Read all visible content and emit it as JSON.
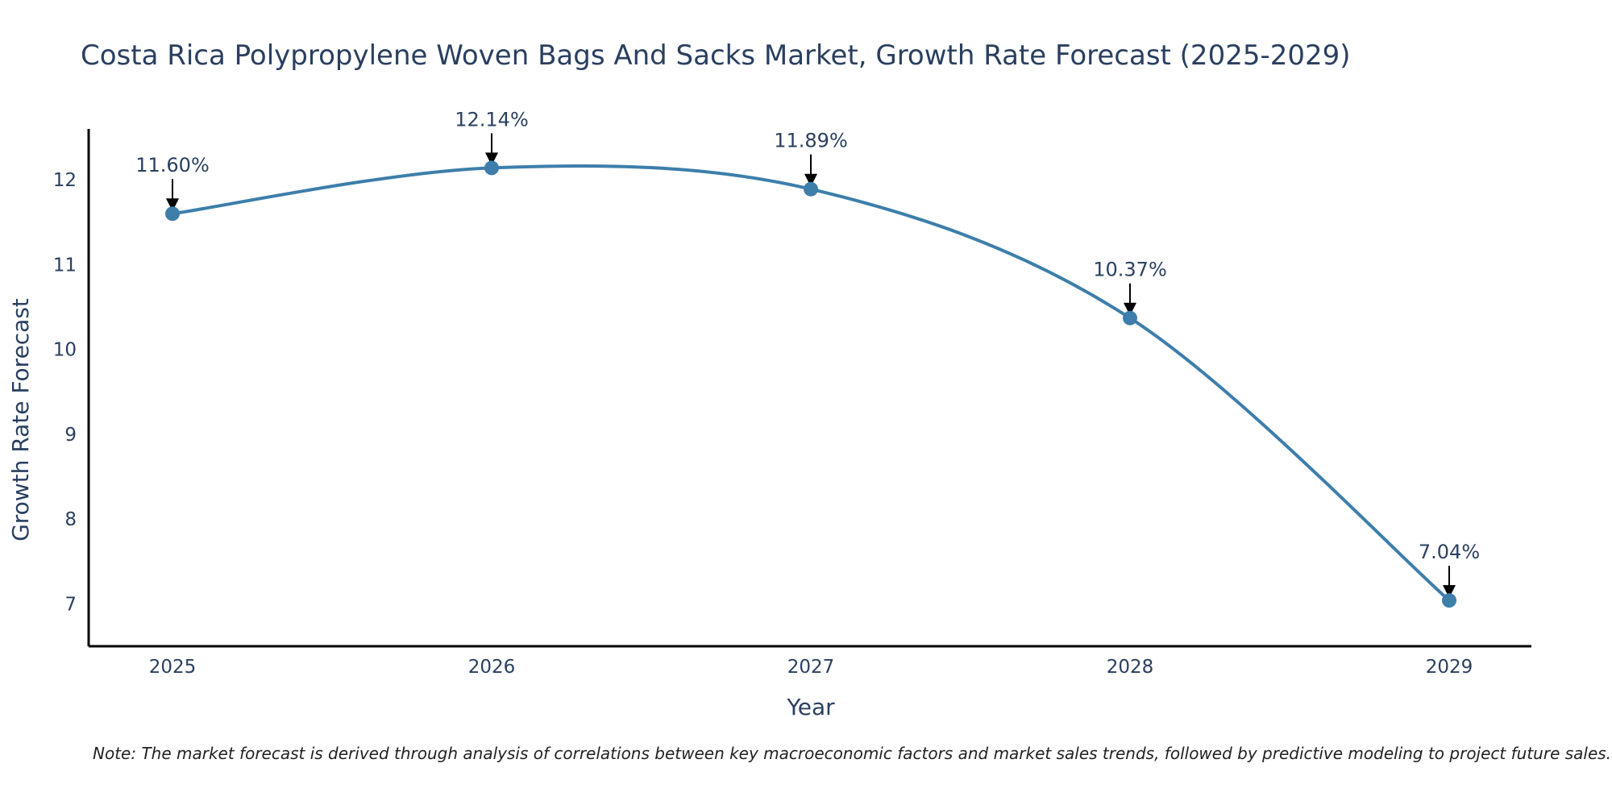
{
  "chart_data": {
    "type": "line",
    "title": "Costa Rica Polypropylene Woven Bags And Sacks Market, Growth Rate Forecast (2025-2029)",
    "xlabel": "Year",
    "ylabel": "Growth Rate Forecast",
    "categories": [
      "2025",
      "2026",
      "2027",
      "2028",
      "2029"
    ],
    "series": [
      {
        "name": "Growth Rate Forecast",
        "values": [
          11.6,
          12.14,
          11.89,
          10.37,
          7.04
        ],
        "labels": [
          "11.60%",
          "12.14%",
          "11.89%",
          "10.37%",
          "7.04%"
        ],
        "color": "#3d7eab"
      }
    ],
    "yticks": [
      7,
      8,
      9,
      10,
      11,
      12
    ],
    "ylim": [
      6.5,
      12.6
    ],
    "grid": false,
    "line_shape": "spline",
    "note": "Note: The market forecast is derived through analysis of correlations between key macroeconomic factors and market sales trends, followed by predictive modeling to project future sales."
  }
}
